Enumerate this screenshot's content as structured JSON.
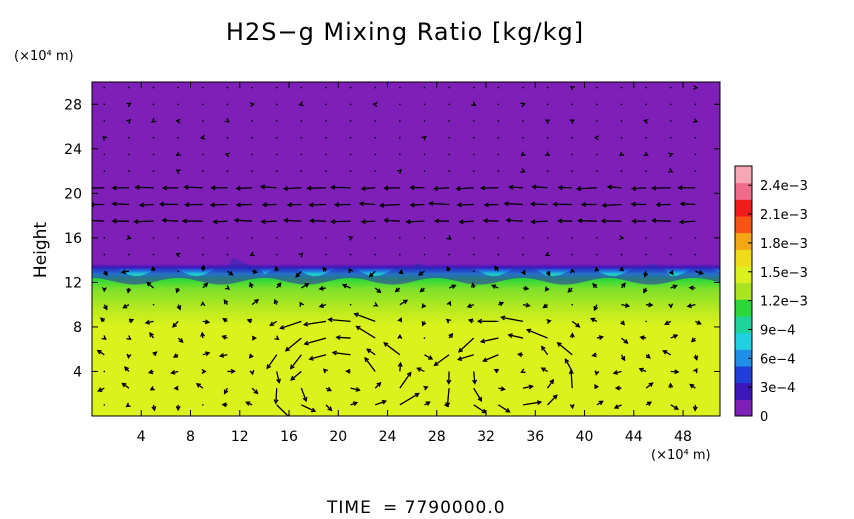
{
  "chart_data": {
    "type": "heatmap",
    "title": "H2S−g Mixing Ratio [kg/kg]",
    "ylabel": "Height",
    "x_unit": "(×10⁴ m)",
    "y_unit": "(×10⁴ m)",
    "footer_label": "TIME",
    "footer_value": "= 7790000.0",
    "xlim": [
      0,
      51
    ],
    "ylim": [
      0,
      30
    ],
    "x_ticks": [
      4,
      8,
      12,
      16,
      20,
      24,
      28,
      32,
      36,
      40,
      44,
      48
    ],
    "y_ticks": [
      4,
      8,
      12,
      16,
      20,
      24,
      28
    ],
    "grid": false,
    "colorbar": {
      "range": [
        0,
        0.0026
      ],
      "ticks": [
        {
          "value": 0,
          "label": "0"
        },
        {
          "value": 0.0003,
          "label": "3e−4"
        },
        {
          "value": 0.0006,
          "label": "6e−4"
        },
        {
          "value": 0.0009,
          "label": "9e−4"
        },
        {
          "value": 0.0012,
          "label": "1.2e−3"
        },
        {
          "value": 0.0015,
          "label": "1.5e−3"
        },
        {
          "value": 0.0018,
          "label": "1.8e−3"
        },
        {
          "value": 0.0021,
          "label": "2.1e−3"
        },
        {
          "value": 0.0024,
          "label": "2.4e−3"
        }
      ],
      "colors": [
        "#7e1fb7",
        "#3b16b8",
        "#1f3fd8",
        "#1f8fe8",
        "#1fd0e0",
        "#1fd49a",
        "#2ad83a",
        "#a8e41f",
        "#dcf21c",
        "#f2dc18",
        "#f5a614",
        "#f55414",
        "#f01c1c",
        "#f06a8a",
        "#f5a8b4"
      ]
    },
    "field": {
      "upper_region": {
        "y_range": [
          13,
          30
        ],
        "value": 0
      },
      "interface_height_approx": 13,
      "transition_band": [
        11,
        13.5
      ],
      "lower_region": {
        "y_range": [
          0,
          11
        ],
        "value": 0.0016
      }
    },
    "vector_field": "wind velocity arrows overlaid; circulation cells near x≈20 and x≈34, strong leftward flow near y≈19"
  }
}
